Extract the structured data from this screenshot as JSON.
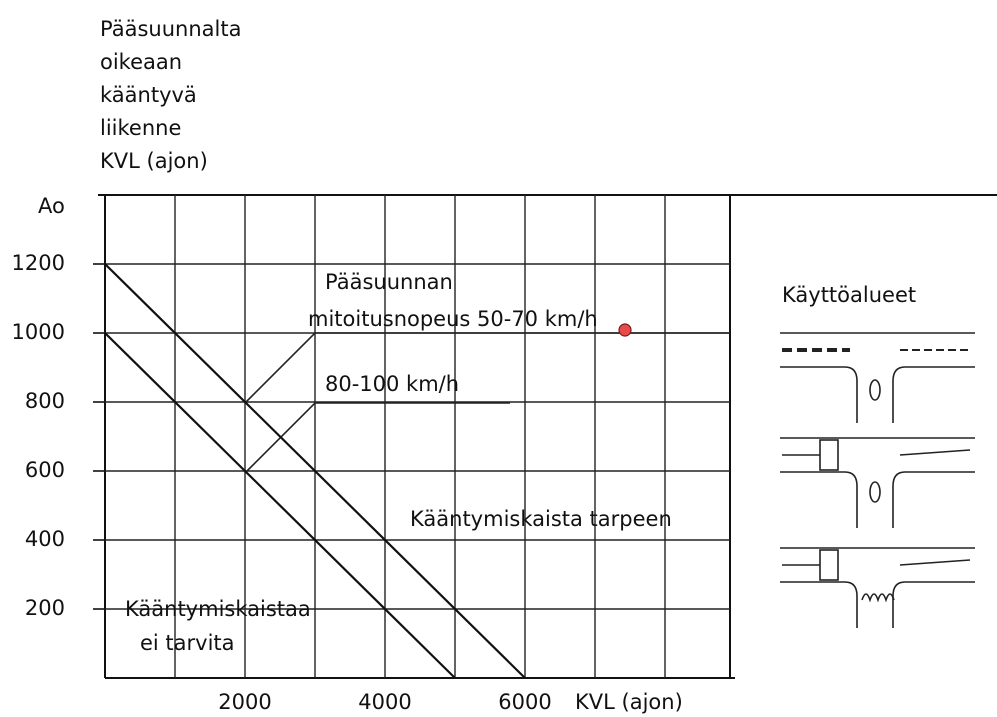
{
  "chart_data": {
    "type": "line",
    "ytitle": [
      "Pääsuunnalta",
      "oikeaan",
      "kääntyvä",
      "liikenne",
      "KVL (ajon)"
    ],
    "ylabel_top": "Ao",
    "xlabel": "KVL (ajon)",
    "lines": [
      {
        "x": [
          0,
          6000
        ],
        "values": [
          1200,
          0
        ],
        "color": "#111111"
      },
      {
        "x": [
          0,
          5000
        ],
        "values": [
          1000,
          0
        ],
        "color": "#111111"
      }
    ],
    "xlim": [
      0,
      9000
    ],
    "ylim": [
      0,
      1400
    ],
    "xticks": [
      2000,
      4000,
      6000
    ],
    "yticks": [
      200,
      400,
      600,
      800,
      1000,
      1200
    ],
    "xgrid": [
      1000,
      2000,
      3000,
      4000,
      5000,
      6000,
      7000,
      8000
    ],
    "ygrid": [
      200,
      400,
      600,
      800,
      1000,
      1200
    ],
    "grid": true,
    "annotations": [
      "Pääsuunnan",
      "mitoitusnopeus  50-70 km/h",
      "80-100 km/h",
      "Kääntymiskaista tarpeen",
      "Kääntymiskaistaa",
      "ei tarvita",
      "Käyttöalueet"
    ]
  }
}
